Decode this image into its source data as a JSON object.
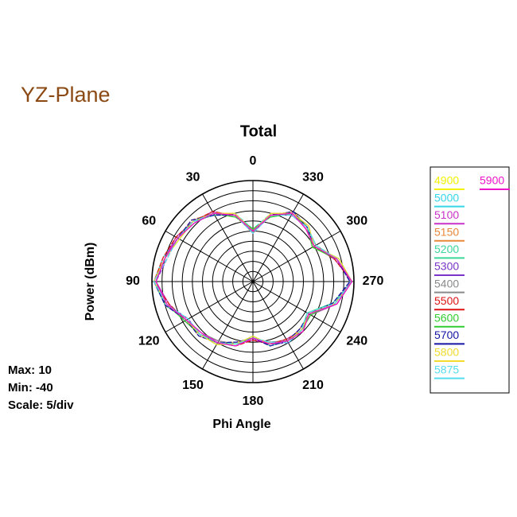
{
  "page": {
    "title": "YZ-Plane",
    "annotations": [
      "Max: 10",
      "Min: -40",
      "Scale: 5/div"
    ]
  },
  "chart_data": {
    "type": "polar",
    "title": "Total",
    "ylabel": "Power  (dBm)",
    "xlabel": "Phi Angle",
    "rlim": [
      -40,
      10
    ],
    "rticks": [
      -40,
      -35,
      -30,
      -25,
      -20,
      -15,
      -10,
      -5,
      0,
      5,
      10
    ],
    "angle_ticks": [
      0,
      30,
      60,
      90,
      120,
      150,
      180,
      210,
      240,
      270,
      300,
      330
    ],
    "direction": "counterclockwise",
    "zero_location": "top",
    "x": [
      0,
      15,
      30,
      45,
      60,
      75,
      90,
      105,
      120,
      135,
      150,
      165,
      180,
      195,
      210,
      225,
      240,
      255,
      270,
      285,
      300,
      315,
      330,
      345
    ],
    "series": [
      {
        "name": "4900",
        "color": "#f2f200",
        "values": [
          -15,
          -6,
          -1,
          2,
          3,
          5,
          9,
          4,
          -2,
          -3,
          -5,
          -8,
          -12,
          -8,
          -6,
          -6,
          -8,
          2,
          9,
          3,
          -5,
          -2,
          -1,
          -6
        ]
      },
      {
        "name": "5000",
        "color": "#33d6e8",
        "values": [
          -14,
          -5,
          -1,
          1,
          3,
          6,
          9,
          4,
          -2,
          -4,
          -5,
          -7,
          -12,
          -9,
          -6,
          -5,
          -8,
          2,
          8,
          3,
          -4,
          -2,
          -1,
          -5
        ]
      },
      {
        "name": "5100",
        "color": "#c832c8",
        "values": [
          -16,
          -6,
          0,
          2,
          4,
          5,
          8,
          3,
          -1,
          -3,
          -6,
          -8,
          -11,
          -8,
          -7,
          -6,
          -7,
          3,
          9,
          2,
          -5,
          -3,
          -1,
          -6
        ]
      },
      {
        "name": "5150",
        "color": "#e8883a",
        "values": [
          -15,
          -7,
          -1,
          3,
          3,
          5,
          9,
          4,
          -2,
          -2,
          -5,
          -9,
          -12,
          -8,
          -6,
          -7,
          -8,
          2,
          9,
          3,
          -6,
          -2,
          0,
          -6
        ]
      },
      {
        "name": "5200",
        "color": "#3cd69a",
        "values": [
          -14,
          -6,
          -2,
          2,
          2,
          5,
          9,
          5,
          -2,
          -3,
          -4,
          -8,
          -13,
          -7,
          -6,
          -6,
          -9,
          1,
          9,
          4,
          -5,
          -1,
          -1,
          -7
        ]
      },
      {
        "name": "5300",
        "color": "#7a35c8",
        "values": [
          -15,
          -5,
          -1,
          2,
          3,
          4,
          8,
          4,
          -3,
          -3,
          -5,
          -8,
          -12,
          -8,
          -5,
          -6,
          -8,
          2,
          8,
          3,
          -5,
          -2,
          -2,
          -6
        ]
      },
      {
        "name": "5400",
        "color": "#8a8a8a",
        "values": [
          -16,
          -6,
          -1,
          1,
          3,
          5,
          9,
          4,
          -2,
          -4,
          -6,
          -8,
          -12,
          -9,
          -6,
          -6,
          -8,
          3,
          9,
          3,
          -4,
          -2,
          -1,
          -5
        ]
      },
      {
        "name": "5500",
        "color": "#dd1515",
        "values": [
          -15,
          -6,
          0,
          2,
          4,
          6,
          9,
          3,
          -2,
          -3,
          -5,
          -7,
          -11,
          -8,
          -7,
          -5,
          -8,
          2,
          9,
          2,
          -5,
          -3,
          -1,
          -6
        ]
      },
      {
        "name": "5600",
        "color": "#33cc33",
        "values": [
          -14,
          -7,
          -1,
          2,
          3,
          5,
          8,
          4,
          -1,
          -3,
          -5,
          -8,
          -12,
          -8,
          -6,
          -6,
          -7,
          2,
          9,
          3,
          -6,
          -2,
          -1,
          -7
        ]
      },
      {
        "name": "5700",
        "color": "#1515a5",
        "values": [
          -15,
          -6,
          -2,
          3,
          3,
          5,
          9,
          5,
          -2,
          -2,
          -5,
          -9,
          -12,
          -7,
          -6,
          -7,
          -8,
          1,
          8,
          3,
          -5,
          -2,
          0,
          -6
        ]
      },
      {
        "name": "5800",
        "color": "#f0dc30",
        "values": [
          -15,
          -5,
          -1,
          2,
          2,
          5,
          9,
          4,
          -2,
          -3,
          -4,
          -8,
          -13,
          -8,
          -6,
          -6,
          -8,
          2,
          9,
          4,
          -5,
          -1,
          -1,
          -5
        ]
      },
      {
        "name": "5875",
        "color": "#55dcee",
        "values": [
          -16,
          -6,
          -1,
          2,
          3,
          4,
          9,
          4,
          -3,
          -3,
          -5,
          -8,
          -12,
          -9,
          -5,
          -6,
          -9,
          2,
          9,
          3,
          -4,
          -2,
          -2,
          -6
        ]
      },
      {
        "name": "5900",
        "color": "#ee14cc",
        "values": [
          -15,
          -6,
          -1,
          1,
          3,
          5,
          8,
          4,
          -2,
          -4,
          -5,
          -7,
          -12,
          -8,
          -6,
          -5,
          -8,
          3,
          9,
          3,
          -5,
          -3,
          -1,
          -6
        ]
      }
    ]
  }
}
